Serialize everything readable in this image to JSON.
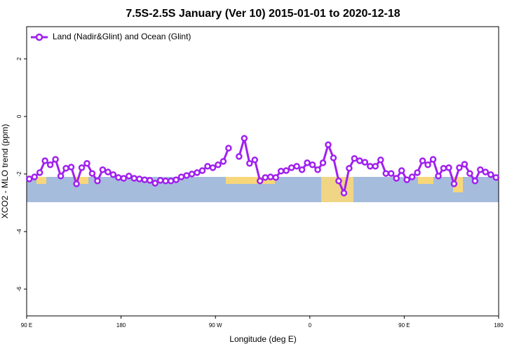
{
  "chart_data": {
    "type": "line",
    "title": "7.5S-2.5S January (Ver 10)   2015-01-01 to 2020-12-18",
    "x_label": "Longitude (deg E)",
    "y_label": "XCO2 - MLO trend (ppm)",
    "xlim": [
      90,
      540
    ],
    "xticks": [
      {
        "value": 90,
        "label": "90 E"
      },
      {
        "value": 180,
        "label": "180"
      },
      {
        "value": 270,
        "label": "90 W"
      },
      {
        "value": 360,
        "label": "0"
      },
      {
        "value": 450,
        "label": "90 E"
      },
      {
        "value": 540,
        "label": "180"
      }
    ],
    "ylim": [
      -6.93,
      3.12
    ],
    "yticks": [
      2,
      0,
      -2,
      -4,
      -6
    ],
    "legend": "top-left",
    "x": [
      92.5,
      97.5,
      102.5,
      107.5,
      112.5,
      117.5,
      122.5,
      127.5,
      132.5,
      137.5,
      142.5,
      147.5,
      152.5,
      157.5,
      162.5,
      167.5,
      172.5,
      177.5,
      182.5,
      187.5,
      192.5,
      197.5,
      202.5,
      207.5,
      212.5,
      217.5,
      222.5,
      227.5,
      232.5,
      237.5,
      242.5,
      247.5,
      252.5,
      257.5,
      262.5,
      267.5,
      272.5,
      277.5,
      282.5,
      287.5,
      292.5,
      297.5,
      302.5,
      307.5,
      312.5,
      317.5,
      322.5,
      327.5,
      332.5,
      337.5,
      342.5,
      347.5,
      352.5,
      357.5,
      362.5,
      367.5,
      372.5,
      377.5,
      382.5,
      387.5,
      392.5,
      397.5,
      402.5,
      407.5,
      412.5,
      417.5,
      422.5,
      427.5,
      432.5,
      437.5,
      442.5,
      447.5,
      452.5,
      457.5,
      462.5,
      467.5,
      472.5,
      477.5,
      482.5,
      487.5,
      492.5,
      497.5,
      502.5,
      507.5,
      512.5,
      517.5,
      522.5,
      527.5,
      532.5,
      537.5
    ],
    "series": [
      {
        "name": "Land (Nadir&Glint) and Ocean (Glint)",
        "color": "#a020f0",
        "values": [
          -2.17,
          -2.1,
          -1.95,
          -1.54,
          -1.68,
          -1.49,
          -2.07,
          -1.8,
          -1.76,
          -2.34,
          -1.78,
          -1.63,
          -1.98,
          -2.24,
          -1.85,
          -1.93,
          -2.02,
          -2.12,
          -2.15,
          -2.07,
          -2.15,
          -2.17,
          -2.2,
          -2.22,
          -2.32,
          -2.22,
          -2.24,
          -2.24,
          -2.2,
          -2.1,
          -2.05,
          -2.0,
          -1.95,
          -1.88,
          -1.73,
          -1.78,
          -1.68,
          -1.56,
          -1.1,
          null,
          -1.39,
          -0.76,
          -1.63,
          -1.51,
          -2.24,
          -2.12,
          -2.1,
          -2.12,
          -1.9,
          -1.88,
          -1.78,
          -1.73,
          -1.85,
          -1.61,
          -1.68,
          -1.85,
          -1.61,
          -0.98,
          -1.44,
          -2.24,
          -2.66,
          -1.8,
          -1.46,
          -1.54,
          -1.59,
          -1.73,
          -1.73,
          -1.51,
          -1.98,
          -1.98,
          -2.15,
          -1.88,
          -2.2,
          -2.1,
          -1.95,
          -1.54,
          -1.68,
          -1.49,
          -2.07,
          -1.8,
          -1.78,
          -2.34,
          -1.78,
          -1.66,
          -1.98,
          -2.24,
          -1.85,
          -1.93,
          -2.02,
          -2.12
        ]
      }
    ]
  }
}
